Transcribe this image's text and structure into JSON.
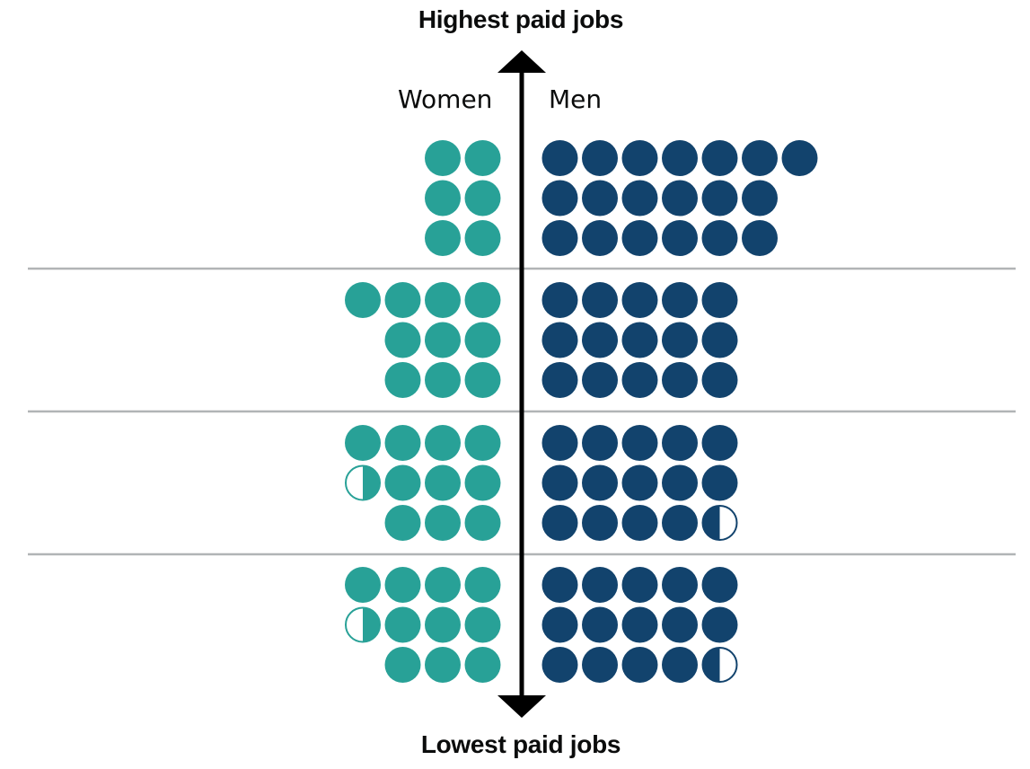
{
  "chart_data": {
    "type": "pictogram",
    "title_top": "Highest paid jobs",
    "title_bottom": "Lowest paid jobs",
    "series": [
      {
        "name": "Women",
        "color": "#28a197",
        "side": "left"
      },
      {
        "name": "Men",
        "color": "#12436d",
        "side": "right"
      }
    ],
    "quartiles": [
      {
        "women": 6,
        "men": 19
      },
      {
        "women": 10,
        "men": 15
      },
      {
        "women": 10.5,
        "men": 14.5
      },
      {
        "women": 10.5,
        "men": 14.5
      }
    ]
  },
  "colors": {
    "women": "#28a197",
    "men": "#12436d",
    "axis": "#000000",
    "divider": "#b1b4b6"
  }
}
